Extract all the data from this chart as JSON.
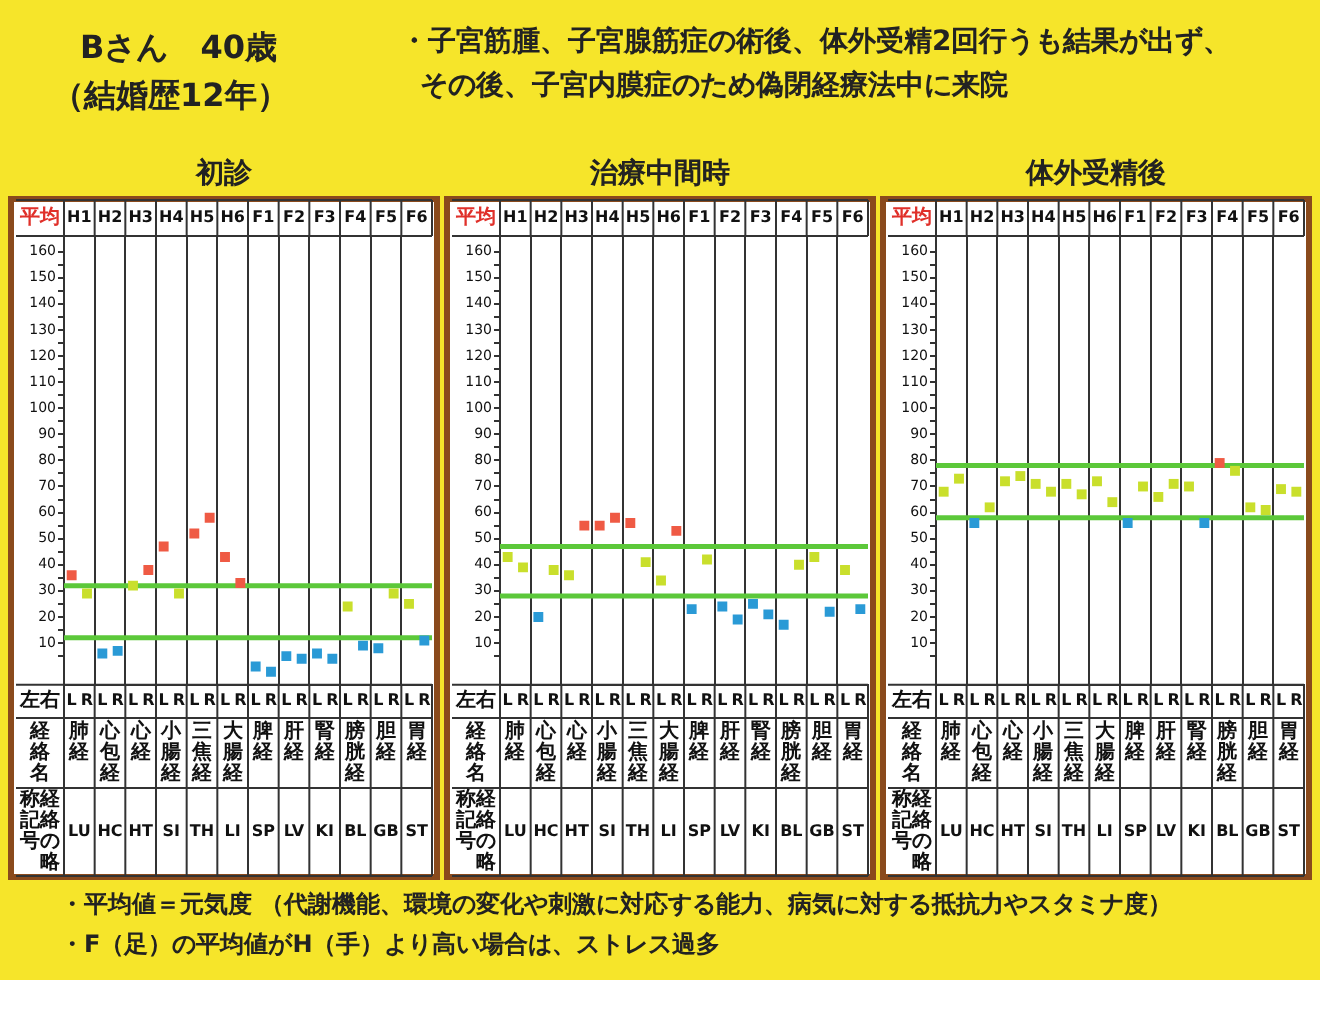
{
  "chart_data": [
    {
      "type": "other",
      "title": "Bさん　40歳",
      "subtitle": "（結婚歴12年）",
      "annotations": [
        "・子宮筋腫、子宮腺筋症の術後、体外受精2回行うも結果が出ず、",
        "その後、子宮内膜症のため偽閉経療法中に来院",
        "・平均値＝元気度 （代謝機能、環境の変化や刺激に対応する能力、病気に対する抵抗力やスタミナ度）",
        "・F（足）の平均値がH（手）より高い場合は、ストレス過多"
      ]
    },
    {
      "type": "scatter",
      "title": "初診",
      "categories": [
        "L",
        "R",
        "L",
        "R",
        "L",
        "R",
        "L",
        "R",
        "L",
        "R",
        "L",
        "R",
        "L",
        "R",
        "L",
        "R",
        "L",
        "R",
        "L",
        "R",
        "L",
        "R",
        "L",
        "R"
      ],
      "series": [
        {
          "color": "#ef5a44",
          "values": [
            36,
            null,
            null,
            null,
            null,
            38,
            47,
            null,
            52,
            58,
            43,
            33,
            null,
            null,
            null,
            null,
            null,
            null,
            null,
            null,
            null,
            null,
            null,
            null
          ]
        },
        {
          "color": "#c9df2c",
          "values": [
            null,
            29,
            null,
            null,
            32,
            null,
            null,
            29,
            null,
            null,
            null,
            null,
            null,
            null,
            null,
            null,
            null,
            null,
            24,
            null,
            null,
            29,
            25,
            null
          ]
        },
        {
          "color": "#2a9ad6",
          "values": [
            null,
            null,
            6,
            7,
            null,
            null,
            null,
            null,
            null,
            null,
            null,
            null,
            1,
            -1,
            5,
            4,
            6,
            4,
            null,
            9,
            8,
            null,
            null,
            11
          ]
        }
      ],
      "ylim": [
        -6,
        166
      ],
      "yticks": [
        {
          "value": 5,
          "label": null
        },
        10,
        {
          "value": 15,
          "label": null
        },
        20,
        {
          "value": 25,
          "label": null
        },
        30,
        {
          "value": 35,
          "label": null
        },
        40,
        {
          "value": 45,
          "label": null
        },
        50,
        {
          "value": 55,
          "label": null
        },
        60,
        {
          "value": 65,
          "label": null
        },
        70,
        {
          "value": 75,
          "label": null
        },
        80,
        {
          "value": 85,
          "label": null
        },
        90,
        {
          "value": 95,
          "label": null
        },
        100,
        {
          "value": 105,
          "label": null
        },
        110,
        {
          "value": 115,
          "label": null
        },
        120,
        {
          "value": 125,
          "label": null
        },
        130,
        {
          "value": 135,
          "label": null
        },
        140,
        {
          "value": 145,
          "label": null
        },
        150,
        {
          "value": 155,
          "label": null
        },
        160
      ],
      "ref_lines": [
        {
          "axis": "y",
          "value": 32,
          "color": "#5cc83a"
        },
        {
          "axis": "y",
          "value": 12,
          "color": "#5cc83a"
        }
      ],
      "grid": "x",
      "marker": "square",
      "legend": false,
      "annotations": [
        "平均",
        "H1",
        "H2",
        "H3",
        "H4",
        "H5",
        "H6",
        "F1",
        "F2",
        "F3",
        "F4",
        "F5",
        "F6",
        "左右",
        "経絡名",
        "肺経",
        "心包経",
        "心経",
        "小腸経",
        "三焦経",
        "大腸経",
        "脾経",
        "肝経",
        "腎経",
        "膀胱経",
        "胆経",
        "胃経",
        "経絡の略称記号",
        "LU",
        "HC",
        "HT",
        "SI",
        "TH",
        "LI",
        "SP",
        "LV",
        "KI",
        "BL",
        "GB",
        "ST"
      ]
    },
    {
      "type": "scatter",
      "title": "治療中間時",
      "categories": [
        "L",
        "R",
        "L",
        "R",
        "L",
        "R",
        "L",
        "R",
        "L",
        "R",
        "L",
        "R",
        "L",
        "R",
        "L",
        "R",
        "L",
        "R",
        "L",
        "R",
        "L",
        "R",
        "L",
        "R"
      ],
      "series": [
        {
          "color": "#ef5a44",
          "values": [
            null,
            null,
            null,
            null,
            null,
            55,
            55,
            58,
            56,
            null,
            null,
            53,
            null,
            null,
            null,
            null,
            null,
            null,
            null,
            null,
            null,
            null,
            null,
            null
          ]
        },
        {
          "color": "#c9df2c",
          "values": [
            43,
            39,
            null,
            38,
            36,
            null,
            null,
            null,
            null,
            41,
            34,
            null,
            null,
            42,
            null,
            null,
            null,
            null,
            null,
            40,
            43,
            null,
            38,
            null
          ]
        },
        {
          "color": "#2a9ad6",
          "values": [
            null,
            null,
            20,
            null,
            null,
            null,
            null,
            null,
            null,
            null,
            null,
            null,
            23,
            null,
            24,
            19,
            25,
            21,
            17,
            null,
            null,
            22,
            null,
            23
          ]
        }
      ],
      "ylim": [
        -6,
        166
      ],
      "yticks": [
        {
          "value": 5,
          "label": null
        },
        10,
        {
          "value": 15,
          "label": null
        },
        20,
        {
          "value": 25,
          "label": null
        },
        30,
        {
          "value": 35,
          "label": null
        },
        40,
        {
          "value": 45,
          "label": null
        },
        50,
        {
          "value": 55,
          "label": null
        },
        60,
        {
          "value": 65,
          "label": null
        },
        70,
        {
          "value": 75,
          "label": null
        },
        80,
        {
          "value": 85,
          "label": null
        },
        90,
        {
          "value": 95,
          "label": null
        },
        100,
        {
          "value": 105,
          "label": null
        },
        110,
        {
          "value": 115,
          "label": null
        },
        120,
        {
          "value": 125,
          "label": null
        },
        130,
        {
          "value": 135,
          "label": null
        },
        140,
        {
          "value": 145,
          "label": null
        },
        150,
        {
          "value": 155,
          "label": null
        },
        160
      ],
      "ref_lines": [
        {
          "axis": "y",
          "value": 47,
          "color": "#5cc83a"
        },
        {
          "axis": "y",
          "value": 28,
          "color": "#5cc83a"
        }
      ],
      "grid": "x",
      "marker": "square",
      "legend": false,
      "annotations": [
        "平均",
        "H1",
        "H2",
        "H3",
        "H4",
        "H5",
        "H6",
        "F1",
        "F2",
        "F3",
        "F4",
        "F5",
        "F6",
        "左右",
        "経絡名",
        "肺経",
        "心包経",
        "心経",
        "小腸経",
        "三焦経",
        "大腸経",
        "脾経",
        "肝経",
        "腎経",
        "膀胱経",
        "胆経",
        "胃経",
        "経絡の略称記号",
        "LU",
        "HC",
        "HT",
        "SI",
        "TH",
        "LI",
        "SP",
        "LV",
        "KI",
        "BL",
        "GB",
        "ST"
      ]
    },
    {
      "type": "scatter",
      "title": "体外受精後",
      "categories": [
        "L",
        "R",
        "L",
        "R",
        "L",
        "R",
        "L",
        "R",
        "L",
        "R",
        "L",
        "R",
        "L",
        "R",
        "L",
        "R",
        "L",
        "R",
        "L",
        "R",
        "L",
        "R",
        "L",
        "R"
      ],
      "series": [
        {
          "color": "#ef5a44",
          "values": [
            null,
            null,
            null,
            null,
            null,
            null,
            null,
            null,
            null,
            null,
            null,
            null,
            null,
            null,
            null,
            null,
            null,
            null,
            79,
            null,
            null,
            null,
            null,
            null
          ]
        },
        {
          "color": "#c9df2c",
          "values": [
            68,
            73,
            null,
            62,
            72,
            74,
            71,
            68,
            71,
            67,
            72,
            64,
            null,
            70,
            66,
            71,
            70,
            null,
            null,
            76,
            62,
            61,
            69,
            68
          ]
        },
        {
          "color": "#2a9ad6",
          "values": [
            null,
            null,
            56,
            null,
            null,
            null,
            null,
            null,
            null,
            null,
            null,
            null,
            56,
            null,
            null,
            null,
            null,
            56,
            null,
            null,
            null,
            null,
            null,
            null
          ]
        }
      ],
      "ylim": [
        -6,
        166
      ],
      "yticks": [
        {
          "value": 5,
          "label": null
        },
        10,
        {
          "value": 15,
          "label": null
        },
        20,
        {
          "value": 25,
          "label": null
        },
        30,
        {
          "value": 35,
          "label": null
        },
        40,
        {
          "value": 45,
          "label": null
        },
        50,
        {
          "value": 55,
          "label": null
        },
        60,
        {
          "value": 65,
          "label": null
        },
        70,
        {
          "value": 75,
          "label": null
        },
        80,
        {
          "value": 85,
          "label": null
        },
        90,
        {
          "value": 95,
          "label": null
        },
        100,
        {
          "value": 105,
          "label": null
        },
        110,
        {
          "value": 115,
          "label": null
        },
        120,
        {
          "value": 125,
          "label": null
        },
        130,
        {
          "value": 135,
          "label": null
        },
        140,
        {
          "value": 145,
          "label": null
        },
        150,
        {
          "value": 155,
          "label": null
        },
        160
      ],
      "ref_lines": [
        {
          "axis": "y",
          "value": 78,
          "color": "#5cc83a"
        },
        {
          "axis": "y",
          "value": 58,
          "color": "#5cc83a"
        }
      ],
      "grid": "x",
      "marker": "square",
      "legend": false,
      "annotations": [
        "平均",
        "H1",
        "H2",
        "H3",
        "H4",
        "H5",
        "H6",
        "F1",
        "F2",
        "F3",
        "F4",
        "F5",
        "F6",
        "左右",
        "経絡名",
        "肺経",
        "心包経",
        "心経",
        "小腸経",
        "三焦経",
        "大腸経",
        "脾経",
        "肝経",
        "腎経",
        "膀胱経",
        "胆経",
        "胃経",
        "経絡の略称記号",
        "LU",
        "HC",
        "HT",
        "SI",
        "TH",
        "LI",
        "SP",
        "LV",
        "KI",
        "BL",
        "GB",
        "ST"
      ]
    }
  ]
}
